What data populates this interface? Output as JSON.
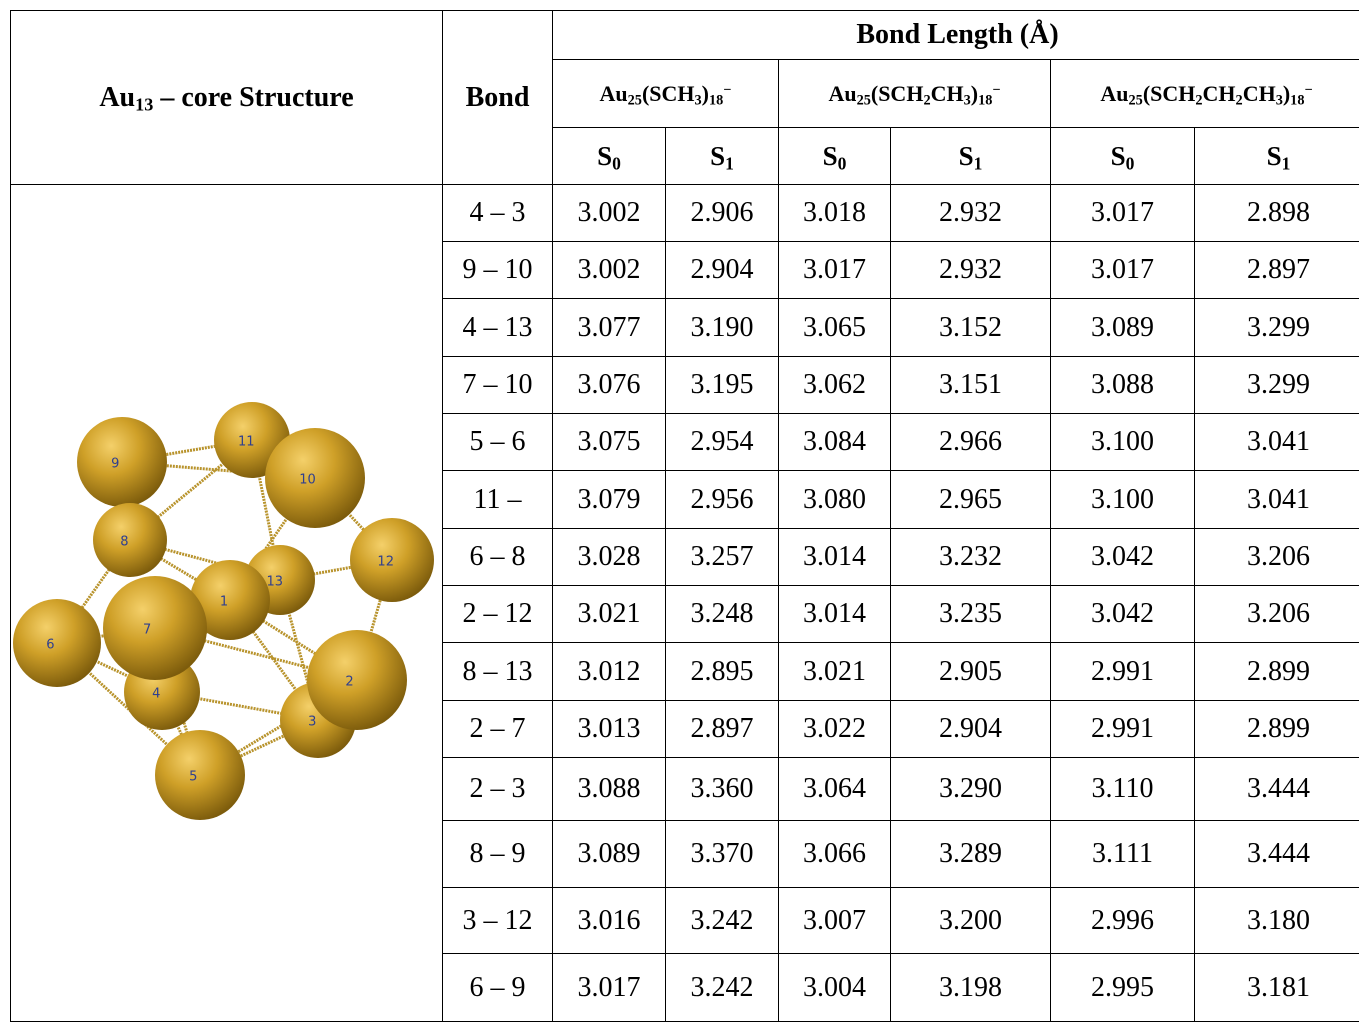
{
  "header": {
    "structure": [
      {
        "t": "Au"
      },
      {
        "sub": "13"
      },
      {
        "t": " – core Structure"
      }
    ],
    "bond": "Bond",
    "bond_length": "Bond Length (Å)",
    "compounds": [
      [
        {
          "t": "Au"
        },
        {
          "sub": "25"
        },
        {
          "t": "(SCH"
        },
        {
          "sub": "3"
        },
        {
          "t": ")"
        },
        {
          "sub": "18"
        },
        {
          "sup": "−"
        }
      ],
      [
        {
          "t": "Au"
        },
        {
          "sub": "25"
        },
        {
          "t": "(SCH"
        },
        {
          "sub": "2"
        },
        {
          "t": "CH"
        },
        {
          "sub": "3"
        },
        {
          "t": ")"
        },
        {
          "sub": "18"
        },
        {
          "sup": "−"
        }
      ],
      [
        {
          "t": "Au"
        },
        {
          "sub": "25"
        },
        {
          "t": "(SCH"
        },
        {
          "sub": "2"
        },
        {
          "t": "CH"
        },
        {
          "sub": "2"
        },
        {
          "t": "CH"
        },
        {
          "sub": "3"
        },
        {
          "t": ")"
        },
        {
          "sub": "18"
        },
        {
          "sup": "−"
        }
      ]
    ],
    "states": [
      [
        {
          "t": "S"
        },
        {
          "sub": "0"
        }
      ],
      [
        {
          "t": "S"
        },
        {
          "sub": "1"
        }
      ],
      [
        {
          "t": "S"
        },
        {
          "sub": "0"
        }
      ],
      [
        {
          "t": "S"
        },
        {
          "sub": "1"
        }
      ],
      [
        {
          "t": "S"
        },
        {
          "sub": "0"
        }
      ],
      [
        {
          "t": "S"
        },
        {
          "sub": "1"
        }
      ]
    ]
  },
  "rows": [
    {
      "bond": "4 – 3",
      "values": [
        "3.002",
        "2.906",
        "3.018",
        "2.932",
        "3.017",
        "2.898"
      ]
    },
    {
      "bond": "9 – 10",
      "values": [
        "3.002",
        "2.904",
        "3.017",
        "2.932",
        "3.017",
        "2.897"
      ]
    },
    {
      "bond": "4 – 13",
      "values": [
        "3.077",
        "3.190",
        "3.065",
        "3.152",
        "3.089",
        "3.299"
      ]
    },
    {
      "bond": "7 – 10",
      "values": [
        "3.076",
        "3.195",
        "3.062",
        "3.151",
        "3.088",
        "3.299"
      ]
    },
    {
      "bond": "5 – 6",
      "values": [
        "3.075",
        "2.954",
        "3.084",
        "2.966",
        "3.100",
        "3.041"
      ]
    },
    {
      "bond": "11 –",
      "values": [
        "3.079",
        "2.956",
        "3.080",
        "2.965",
        "3.100",
        "3.041"
      ]
    },
    {
      "bond": "6 – 8",
      "values": [
        "3.028",
        "3.257",
        "3.014",
        "3.232",
        "3.042",
        "3.206"
      ]
    },
    {
      "bond": "2 – 12",
      "values": [
        "3.021",
        "3.248",
        "3.014",
        "3.235",
        "3.042",
        "3.206"
      ]
    },
    {
      "bond": "8 – 13",
      "values": [
        "3.012",
        "2.895",
        "3.021",
        "2.905",
        "2.991",
        "2.899"
      ]
    },
    {
      "bond": "2 – 7",
      "values": [
        "3.013",
        "2.897",
        "3.022",
        "2.904",
        "2.991",
        "2.899"
      ]
    },
    {
      "bond": "2 – 3",
      "values": [
        "3.088",
        "3.360",
        "3.064",
        "3.290",
        "3.110",
        "3.444"
      ]
    },
    {
      "bond": "8 – 9",
      "values": [
        "3.089",
        "3.370",
        "3.066",
        "3.289",
        "3.111",
        "3.444"
      ]
    },
    {
      "bond": "3 – 12",
      "values": [
        "3.016",
        "3.242",
        "3.007",
        "3.200",
        "2.996",
        "3.180"
      ]
    },
    {
      "bond": "6 – 9",
      "values": [
        "3.017",
        "3.242",
        "3.004",
        "3.198",
        "2.995",
        "3.181"
      ]
    }
  ],
  "structure_labels": [
    "1",
    "2",
    "3",
    "4",
    "5",
    "6",
    "7",
    "8",
    "9",
    "10",
    "11",
    "12",
    "13"
  ]
}
